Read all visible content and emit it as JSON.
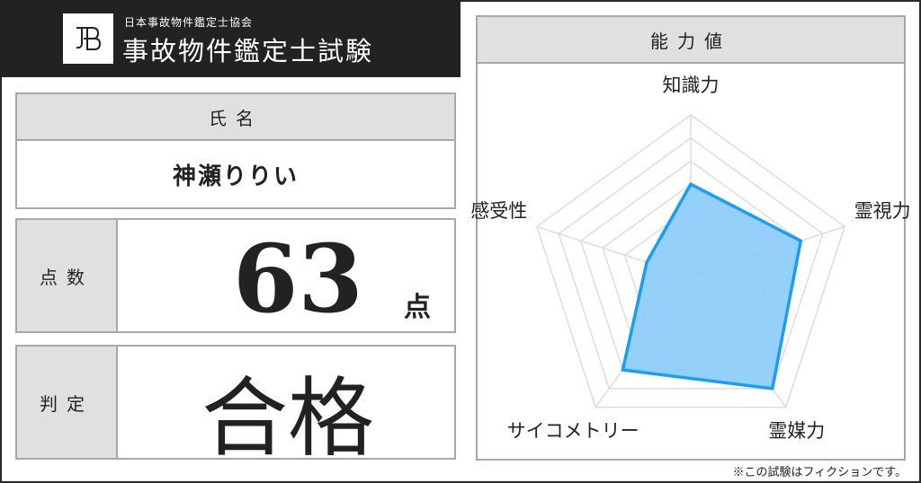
{
  "header": {
    "logo_text": "JB",
    "organization": "日本事故物件鑑定士協会",
    "title": "事故物件鑑定士試験"
  },
  "name_section": {
    "label": "氏名",
    "value": "神瀬りりい"
  },
  "score_section": {
    "label": "点数",
    "value": "63",
    "unit": "点"
  },
  "judgment_section": {
    "label": "判定",
    "value": "合格"
  },
  "ability_section": {
    "label": "能力値"
  },
  "chart_data": {
    "type": "radar",
    "axes": [
      "知識力",
      "霊視力",
      "霊媒力",
      "サイコメトリー",
      "感受性"
    ],
    "values": [
      4,
      5,
      6,
      5,
      2
    ],
    "range": [
      0,
      7
    ],
    "rings": 7,
    "colors": {
      "fill": "#88cbf9",
      "stroke": "#1b9cf5",
      "grid": "#dddddd"
    }
  },
  "footnote": "※この試験はフィクションです。"
}
